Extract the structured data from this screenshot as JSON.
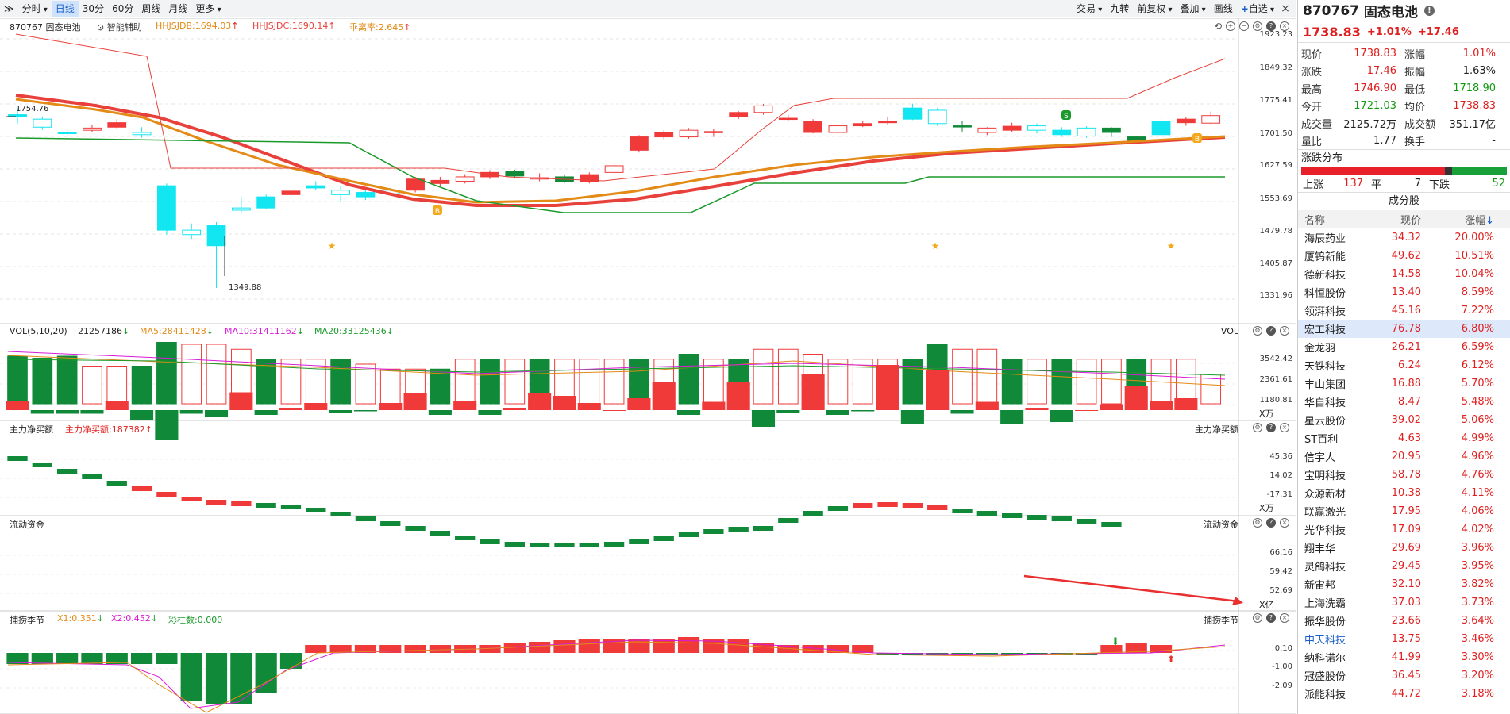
{
  "toolbar": {
    "expand_label": "≫",
    "fenshi": "分时",
    "rixian": "日线",
    "m30": "30分",
    "m60": "60分",
    "zhou": "周线",
    "yue": "月线",
    "more": "更多",
    "trade": "交易",
    "jiuzhuan": "九转",
    "fuquan": "前复权",
    "diejia": "叠加",
    "huaxian": "画线",
    "zixuan": "自选",
    "close": "×"
  },
  "main_panel": {
    "stock_label": "870767 固态电池",
    "assist_label": "智能辅助",
    "ind1": "HHJSJDB:1694.03",
    "ind2": "HHJSJDC:1690.14",
    "ind3": "乖离率:2.645",
    "high_tag": "1754.76",
    "low_tag": "1349.88",
    "y_ticks": [
      "1923.23",
      "1849.32",
      "1775.41",
      "1701.50",
      "1627.59",
      "1553.69",
      "1479.78",
      "1405.87",
      "1331.96"
    ],
    "buy_marker": "B",
    "sell_marker": "S"
  },
  "vol_panel": {
    "title": "VOL(5,10,20)",
    "value": "21257186",
    "ma5": "MA5:28411428",
    "ma10": "MA10:31411162",
    "ma20": "MA20:33125436",
    "right_label": "VOL",
    "y_ticks": [
      "3542.42",
      "2361.61",
      "1180.81"
    ],
    "unit": "X万"
  },
  "flow_panel": {
    "title": "主力净买额",
    "value": "主力净买额:187382",
    "right_label": "主力净买额",
    "y_ticks": [
      "45.36",
      "14.02",
      "-17.31"
    ],
    "unit": "X万"
  },
  "liq_panel": {
    "title": "流动资金",
    "right_label": "流动资金",
    "y_ticks": [
      "66.16",
      "59.42",
      "52.69"
    ],
    "unit": "X亿"
  },
  "season_panel": {
    "title": "捕捞季节",
    "x1": "X1:0.351",
    "x2": "X2:0.452",
    "bars": "彩柱数:0.000",
    "right_label": "捕捞季节",
    "y_ticks": [
      "0.10",
      "-1.00",
      "-2.09"
    ]
  },
  "colors": {
    "up": "#f03a3a",
    "down": "#108a38",
    "cyan": "#12e6f0",
    "ma_red": "#e8403a",
    "ma_orange": "#e38a17",
    "ma_green": "#1a9a2a",
    "accent": "#1a5fc9"
  },
  "side": {
    "code": "870767",
    "name": "固态电池",
    "price": "1738.83",
    "pct": "+1.01%",
    "chg": "+17.46",
    "quote_rows": [
      [
        {
          "k": "现价",
          "v": "1738.83",
          "c": "red"
        },
        {
          "k": "涨幅",
          "v": "1.01%",
          "c": "red"
        }
      ],
      [
        {
          "k": "涨跌",
          "v": "17.46",
          "c": "red"
        },
        {
          "k": "振幅",
          "v": "1.63%",
          "c": ""
        }
      ],
      [
        {
          "k": "最高",
          "v": "1746.90",
          "c": "red"
        },
        {
          "k": "最低",
          "v": "1718.90",
          "c": "grn"
        }
      ],
      [
        {
          "k": "今开",
          "v": "1721.03",
          "c": "grn"
        },
        {
          "k": "均价",
          "v": "1738.83",
          "c": "red"
        }
      ],
      [
        {
          "k": "成交量",
          "v": "2125.72万",
          "c": ""
        },
        {
          "k": "成交额",
          "v": "351.17亿",
          "c": ""
        }
      ],
      [
        {
          "k": "量比",
          "v": "1.77",
          "c": ""
        },
        {
          "k": "换手",
          "v": "-",
          "c": ""
        }
      ]
    ],
    "dist_title": "涨跌分布",
    "dist": {
      "up_label": "上涨",
      "up": "137",
      "flat_label": "平",
      "flat": "7",
      "down_label": "下跌",
      "down": "52",
      "up_ratio": 0.699,
      "flat_ratio": 0.036
    },
    "comp_title": "成分股",
    "headers": [
      "名称",
      "现价",
      "涨幅"
    ],
    "stocks": [
      {
        "n": "海辰药业",
        "p": "34.32",
        "c": "20.00%"
      },
      {
        "n": "厦钨新能",
        "p": "49.62",
        "c": "10.51%"
      },
      {
        "n": "德新科技",
        "p": "14.58",
        "c": "10.04%"
      },
      {
        "n": "科恒股份",
        "p": "13.40",
        "c": "8.59%"
      },
      {
        "n": "领湃科技",
        "p": "45.16",
        "c": "7.22%"
      },
      {
        "n": "宏工科技",
        "p": "76.78",
        "c": "6.80%"
      },
      {
        "n": "金龙羽",
        "p": "26.21",
        "c": "6.59%"
      },
      {
        "n": "天铁科技",
        "p": "6.24",
        "c": "6.12%"
      },
      {
        "n": "丰山集团",
        "p": "16.88",
        "c": "5.70%"
      },
      {
        "n": "华自科技",
        "p": "8.47",
        "c": "5.48%"
      },
      {
        "n": "星云股份",
        "p": "39.02",
        "c": "5.06%"
      },
      {
        "n": "ST百利",
        "p": "4.63",
        "c": "4.99%"
      },
      {
        "n": "信宇人",
        "p": "20.95",
        "c": "4.96%"
      },
      {
        "n": "宝明科技",
        "p": "58.78",
        "c": "4.76%"
      },
      {
        "n": "众源新材",
        "p": "10.38",
        "c": "4.11%"
      },
      {
        "n": "联赢激光",
        "p": "17.95",
        "c": "4.06%"
      },
      {
        "n": "光华科技",
        "p": "17.09",
        "c": "4.02%"
      },
      {
        "n": "翔丰华",
        "p": "29.69",
        "c": "3.96%"
      },
      {
        "n": "灵鸽科技",
        "p": "29.45",
        "c": "3.95%"
      },
      {
        "n": "新宙邦",
        "p": "32.10",
        "c": "3.82%"
      },
      {
        "n": "上海洗霸",
        "p": "37.03",
        "c": "3.73%"
      },
      {
        "n": "振华股份",
        "p": "23.66",
        "c": "3.64%"
      },
      {
        "n": "中天科技",
        "p": "13.75",
        "c": "3.46%"
      },
      {
        "n": "纳科诺尔",
        "p": "41.99",
        "c": "3.30%"
      },
      {
        "n": "冠盛股份",
        "p": "36.45",
        "c": "3.20%"
      },
      {
        "n": "派能科技",
        "p": "44.72",
        "c": "3.18%"
      }
    ]
  }
}
